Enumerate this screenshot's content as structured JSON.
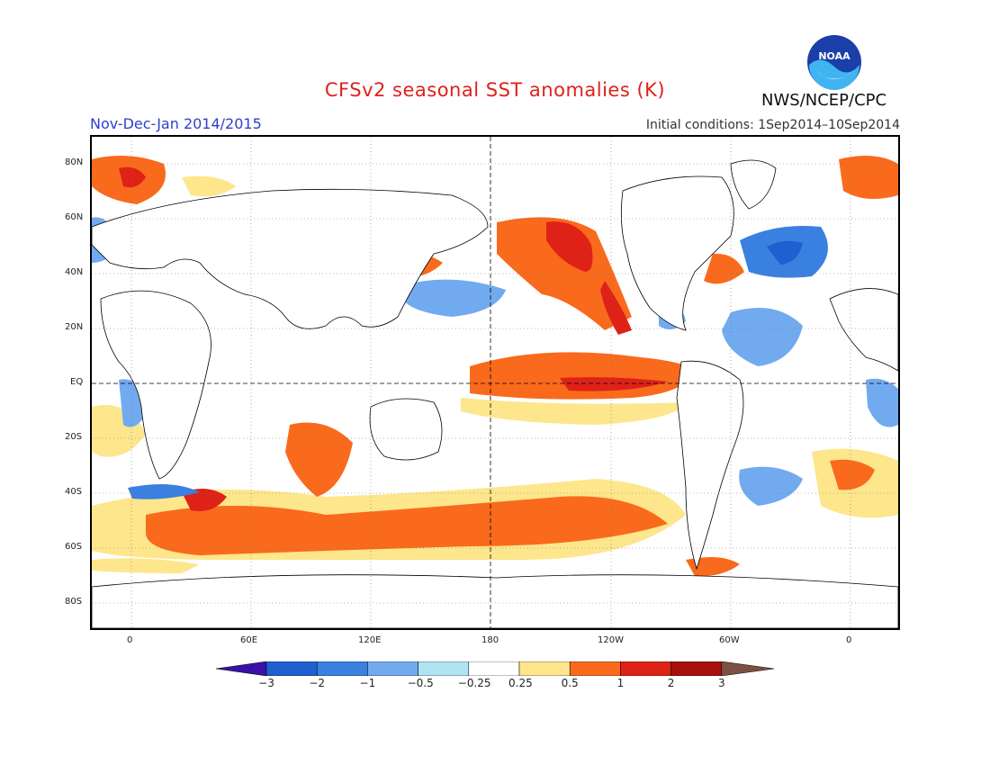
{
  "title": "CFSv2 seasonal SST anomalies (K)",
  "season": "Nov-Dec-Jan 2014/2015",
  "initial_conditions": "Initial conditions: 1Sep2014–10Sep2014",
  "agency": "NWS/NCEP/CPC",
  "logo_text": "NOAA",
  "lat_labels": [
    "80N",
    "60N",
    "40N",
    "20N",
    "EQ",
    "20S",
    "40S",
    "60S",
    "80S"
  ],
  "lon_labels": [
    "0",
    "60E",
    "120E",
    "180",
    "120W",
    "60W",
    "0"
  ],
  "colorbar": {
    "labels": [
      "-3",
      "-2",
      "-1",
      "-0.5",
      "-0.25",
      "0.25",
      "0.5",
      "1",
      "2",
      "3"
    ],
    "colors": [
      "#3a10a8",
      "#1f5fcf",
      "#3a80e0",
      "#72aaf0",
      "#b0e4f2",
      "#ffffff",
      "#fde68c",
      "#f96a1c",
      "#de2218",
      "#a7100d",
      "#7a5142"
    ]
  },
  "colors": {
    "warm_strong": "#de2218",
    "warm": "#f96a1c",
    "warm_weak": "#fde68c",
    "cool_weak": "#b0e4f2",
    "cool": "#72aaf0",
    "cool_strong": "#3a80e0"
  }
}
